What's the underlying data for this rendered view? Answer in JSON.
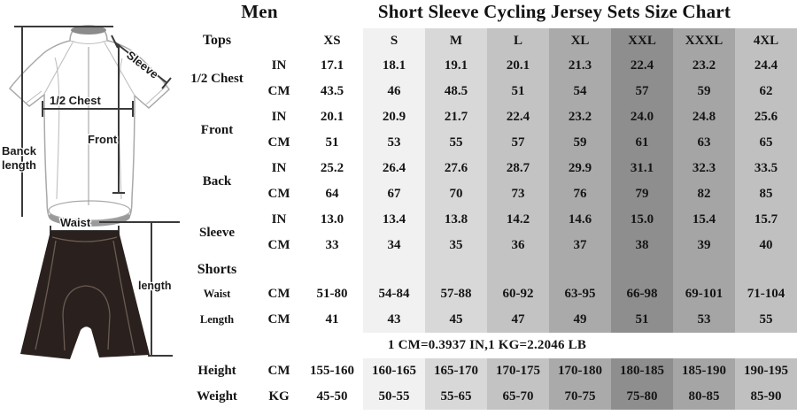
{
  "page": {
    "left_title": "Men",
    "main_title": "Short Sleeve Cycling Jersey Sets Size Chart"
  },
  "diagram": {
    "jersey_labels": {
      "sleeve": "Sleeve",
      "half_chest": "1/2 Chest",
      "back_length_1": "Banck",
      "back_length_2": "length",
      "front": "Front",
      "waist": "Waist",
      "shorts_length": "length"
    },
    "colors": {
      "outline": "#a9a9a9",
      "collar": "#8b8b8b",
      "hem": "#9a9a9a",
      "shorts": "#2a211e",
      "shorts_seam": "#6b5b52"
    }
  },
  "chart_data": {
    "type": "table",
    "title": "Short Sleeve Cycling Jersey Sets Size Chart",
    "corner_label": "Tops",
    "sizes": [
      "XS",
      "S",
      "M",
      "L",
      "XL",
      "XXL",
      "XXXL",
      "4XL"
    ],
    "column_colors": [
      "transparent",
      "#f1f1f1",
      "#d8d8d8",
      "#c3c3c3",
      "#aaaaaa",
      "#8e8e8e",
      "#a5a5a5",
      "#c0c0c0"
    ],
    "rows": [
      {
        "kind": "data",
        "label": "1/2 Chest",
        "label_span": 2,
        "unit": "IN",
        "values": [
          "17.1",
          "18.1",
          "19.1",
          "20.1",
          "21.3",
          "22.4",
          "23.2",
          "24.4"
        ]
      },
      {
        "kind": "data",
        "unit": "CM",
        "values": [
          "43.5",
          "46",
          "48.5",
          "51",
          "54",
          "57",
          "59",
          "62"
        ]
      },
      {
        "kind": "data",
        "label": "Front",
        "label_span": 2,
        "unit": "IN",
        "values": [
          "20.1",
          "20.9",
          "21.7",
          "22.4",
          "23.2",
          "24.0",
          "24.8",
          "25.6"
        ]
      },
      {
        "kind": "data",
        "unit": "CM",
        "values": [
          "51",
          "53",
          "55",
          "57",
          "59",
          "61",
          "63",
          "65"
        ]
      },
      {
        "kind": "data",
        "label": "Back",
        "label_span": 2,
        "unit": "IN",
        "values": [
          "25.2",
          "26.4",
          "27.6",
          "28.7",
          "29.9",
          "31.1",
          "32.3",
          "33.5"
        ]
      },
      {
        "kind": "data",
        "unit": "CM",
        "values": [
          "64",
          "67",
          "70",
          "73",
          "76",
          "79",
          "82",
          "85"
        ]
      },
      {
        "kind": "data",
        "label": "Sleeve",
        "label_span": 2,
        "unit": "IN",
        "values": [
          "13.0",
          "13.4",
          "13.8",
          "14.2",
          "14.6",
          "15.0",
          "15.4",
          "15.7"
        ]
      },
      {
        "kind": "data",
        "unit": "CM",
        "values": [
          "33",
          "34",
          "35",
          "36",
          "37",
          "38",
          "39",
          "40"
        ]
      },
      {
        "kind": "section",
        "label": "Shorts"
      },
      {
        "kind": "data",
        "small": true,
        "label": "Waist",
        "unit": "CM",
        "values": [
          "51-80",
          "54-84",
          "57-88",
          "60-92",
          "63-95",
          "66-98",
          "69-101",
          "71-104"
        ]
      },
      {
        "kind": "data",
        "small": true,
        "label": "Length",
        "unit": "CM",
        "values": [
          "41",
          "43",
          "45",
          "47",
          "49",
          "51",
          "53",
          "55"
        ]
      },
      {
        "kind": "note",
        "text": "1 CM=0.3937 IN,1 KG=2.2046 LB"
      },
      {
        "kind": "data",
        "label": "Height",
        "unit": "CM",
        "values": [
          "155-160",
          "160-165",
          "165-170",
          "170-175",
          "170-180",
          "180-185",
          "185-190",
          "190-195"
        ]
      },
      {
        "kind": "data",
        "label": "Weight",
        "unit": "KG",
        "values": [
          "45-50",
          "50-55",
          "55-65",
          "65-70",
          "70-75",
          "75-80",
          "80-85",
          "85-90"
        ]
      }
    ]
  }
}
